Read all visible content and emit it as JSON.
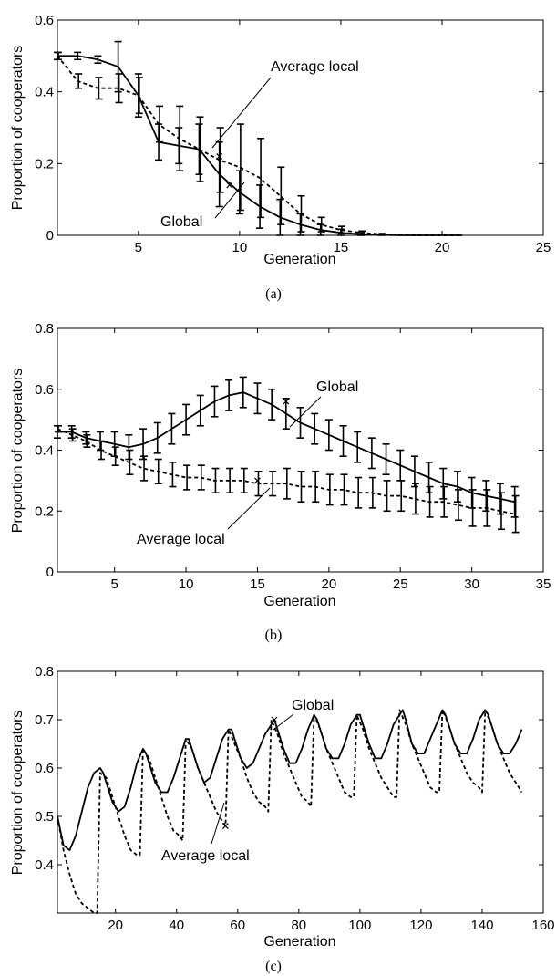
{
  "chart_data": [
    {
      "type": "line",
      "caption": "(a)",
      "xlabel": "Generation",
      "ylabel": "Proportion of cooperators",
      "xlim": [
        1,
        25
      ],
      "ylim": [
        0,
        0.6
      ],
      "xticks": [
        5,
        10,
        15,
        20,
        25
      ],
      "yticks": [
        0,
        0.2,
        0.4,
        0.6
      ],
      "grid": false,
      "series": [
        {
          "name": "Global",
          "style": "solid",
          "x": [
            1,
            2,
            3,
            4,
            5,
            6,
            7,
            8,
            9,
            10,
            11,
            12,
            13,
            14,
            15,
            16,
            17,
            18,
            19,
            20,
            21
          ],
          "y": [
            0.5,
            0.5,
            0.49,
            0.47,
            0.39,
            0.26,
            0.25,
            0.24,
            0.17,
            0.12,
            0.08,
            0.05,
            0.03,
            0.015,
            0.007,
            0.003,
            0.001,
            0,
            0,
            0,
            0
          ],
          "err": [
            0.01,
            0.01,
            0.01,
            0.07,
            0.06,
            0.05,
            0.05,
            0.07,
            0.09,
            0.06,
            0.06,
            0.05,
            0.03,
            0.015,
            0.01,
            0.005,
            0.002,
            0,
            0,
            0,
            0
          ]
        },
        {
          "name": "Average local",
          "style": "dashed",
          "x": [
            1,
            2,
            3,
            4,
            5,
            6,
            7,
            8,
            9,
            10,
            11,
            12,
            13,
            14,
            15,
            16,
            17,
            18,
            19,
            20,
            21
          ],
          "y": [
            0.5,
            0.43,
            0.41,
            0.41,
            0.39,
            0.31,
            0.27,
            0.24,
            0.21,
            0.19,
            0.16,
            0.11,
            0.06,
            0.03,
            0.015,
            0.007,
            0.003,
            0.001,
            0,
            0,
            0
          ],
          "err": [
            0.01,
            0.02,
            0.03,
            0.04,
            0.05,
            0.05,
            0.09,
            0.09,
            0.09,
            0.12,
            0.11,
            0.08,
            0.05,
            0.02,
            0.01,
            0.005,
            0.002,
            0,
            0,
            0,
            0
          ]
        }
      ],
      "annotations": [
        {
          "text": "Average local",
          "series": 1,
          "x": 9,
          "y": 0.22
        },
        {
          "text": "Global",
          "series": 0,
          "x": 9.5,
          "y": 0.14
        }
      ]
    },
    {
      "type": "line",
      "caption": "(b)",
      "xlabel": "Generation",
      "ylabel": "Proportion of cooperators",
      "xlim": [
        1,
        35
      ],
      "ylim": [
        0,
        0.8
      ],
      "xticks": [
        5,
        10,
        15,
        20,
        25,
        30,
        35
      ],
      "yticks": [
        0,
        0.2,
        0.4,
        0.6,
        0.8
      ],
      "grid": false,
      "series": [
        {
          "name": "Global",
          "style": "solid",
          "x": [
            1,
            2,
            3,
            4,
            5,
            6,
            7,
            8,
            9,
            10,
            11,
            12,
            13,
            14,
            15,
            16,
            17,
            18,
            19,
            20,
            21,
            22,
            23,
            24,
            25,
            26,
            27,
            28,
            29,
            30,
            31,
            32,
            33
          ],
          "y": [
            0.46,
            0.46,
            0.44,
            0.43,
            0.42,
            0.41,
            0.42,
            0.44,
            0.47,
            0.5,
            0.53,
            0.56,
            0.58,
            0.59,
            0.57,
            0.55,
            0.52,
            0.49,
            0.47,
            0.45,
            0.43,
            0.41,
            0.39,
            0.37,
            0.35,
            0.33,
            0.31,
            0.29,
            0.28,
            0.26,
            0.25,
            0.24,
            0.23
          ],
          "err": [
            0.02,
            0.02,
            0.02,
            0.03,
            0.04,
            0.04,
            0.05,
            0.05,
            0.05,
            0.05,
            0.05,
            0.05,
            0.05,
            0.05,
            0.05,
            0.05,
            0.05,
            0.05,
            0.05,
            0.05,
            0.05,
            0.05,
            0.05,
            0.05,
            0.05,
            0.05,
            0.05,
            0.05,
            0.05,
            0.05,
            0.05,
            0.05,
            0.05
          ]
        },
        {
          "name": "Average local",
          "style": "dashed",
          "x": [
            1,
            2,
            3,
            4,
            5,
            6,
            7,
            8,
            9,
            10,
            11,
            12,
            13,
            14,
            15,
            16,
            17,
            18,
            19,
            20,
            21,
            22,
            23,
            24,
            25,
            26,
            27,
            28,
            29,
            30,
            31,
            32,
            33
          ],
          "y": [
            0.47,
            0.45,
            0.43,
            0.4,
            0.38,
            0.36,
            0.34,
            0.33,
            0.32,
            0.31,
            0.31,
            0.3,
            0.3,
            0.3,
            0.29,
            0.29,
            0.29,
            0.28,
            0.28,
            0.27,
            0.27,
            0.26,
            0.26,
            0.25,
            0.25,
            0.24,
            0.23,
            0.23,
            0.22,
            0.21,
            0.21,
            0.2,
            0.19
          ],
          "err": [
            0.01,
            0.02,
            0.02,
            0.03,
            0.03,
            0.04,
            0.04,
            0.04,
            0.04,
            0.04,
            0.04,
            0.04,
            0.04,
            0.04,
            0.04,
            0.04,
            0.05,
            0.05,
            0.05,
            0.05,
            0.05,
            0.05,
            0.05,
            0.05,
            0.05,
            0.05,
            0.05,
            0.05,
            0.05,
            0.06,
            0.06,
            0.06,
            0.06
          ]
        }
      ],
      "annotations": [
        {
          "text": "Global",
          "series": 0,
          "x": 17,
          "y": 0.56
        },
        {
          "text": "Average local",
          "series": 1,
          "x": 15,
          "y": 0.3
        }
      ]
    },
    {
      "type": "line",
      "caption": "(c)",
      "xlabel": "Generation",
      "ylabel": "Proportion of cooperators",
      "xlim": [
        1,
        160
      ],
      "ylim": [
        0.3,
        0.8
      ],
      "xticks": [
        20,
        40,
        60,
        80,
        100,
        120,
        140,
        160
      ],
      "yticks": [
        0.4,
        0.5,
        0.6,
        0.7,
        0.8
      ],
      "grid": false,
      "series": [
        {
          "name": "Global",
          "style": "solid",
          "x": [
            1,
            3,
            5,
            7,
            9,
            11,
            13,
            15,
            16,
            17,
            19,
            21,
            23,
            25,
            27,
            29,
            30,
            31,
            33,
            35,
            37,
            39,
            41,
            43,
            44,
            45,
            47,
            49,
            51,
            53,
            55,
            57,
            58,
            59,
            61,
            63,
            65,
            67,
            69,
            71,
            72,
            73,
            75,
            77,
            79,
            81,
            83,
            85,
            86,
            87,
            89,
            91,
            93,
            95,
            97,
            99,
            100,
            101,
            103,
            105,
            107,
            109,
            111,
            113,
            114,
            115,
            117,
            119,
            121,
            123,
            125,
            127,
            128,
            129,
            131,
            133,
            135,
            137,
            139,
            141,
            142,
            143,
            145,
            147,
            149,
            151,
            153
          ],
          "y": [
            0.5,
            0.44,
            0.43,
            0.46,
            0.51,
            0.56,
            0.59,
            0.6,
            0.59,
            0.57,
            0.53,
            0.51,
            0.52,
            0.56,
            0.61,
            0.64,
            0.63,
            0.61,
            0.57,
            0.55,
            0.55,
            0.58,
            0.62,
            0.66,
            0.66,
            0.64,
            0.6,
            0.57,
            0.58,
            0.62,
            0.66,
            0.68,
            0.68,
            0.66,
            0.62,
            0.6,
            0.61,
            0.64,
            0.67,
            0.69,
            0.7,
            0.68,
            0.64,
            0.61,
            0.61,
            0.64,
            0.68,
            0.71,
            0.7,
            0.68,
            0.64,
            0.62,
            0.62,
            0.65,
            0.69,
            0.71,
            0.71,
            0.69,
            0.65,
            0.62,
            0.62,
            0.65,
            0.69,
            0.71,
            0.72,
            0.7,
            0.65,
            0.63,
            0.63,
            0.66,
            0.69,
            0.72,
            0.71,
            0.69,
            0.65,
            0.63,
            0.63,
            0.66,
            0.7,
            0.72,
            0.71,
            0.69,
            0.65,
            0.63,
            0.63,
            0.65,
            0.68
          ]
        },
        {
          "name": "Average local",
          "style": "dashed",
          "x": [
            1,
            3,
            5,
            7,
            9,
            11,
            13,
            14,
            15,
            17,
            19,
            21,
            23,
            25,
            27,
            28,
            29,
            31,
            33,
            35,
            37,
            39,
            41,
            42,
            43,
            45,
            47,
            49,
            51,
            53,
            55,
            56,
            57,
            59,
            61,
            63,
            65,
            67,
            69,
            70,
            71,
            73,
            75,
            77,
            79,
            81,
            83,
            84,
            85,
            87,
            89,
            91,
            93,
            95,
            97,
            98,
            99,
            101,
            103,
            105,
            107,
            109,
            111,
            112,
            113,
            115,
            117,
            119,
            121,
            123,
            125,
            126,
            127,
            129,
            131,
            133,
            135,
            137,
            139,
            140,
            141,
            143,
            145,
            147,
            149,
            151,
            153
          ],
          "y": [
            0.5,
            0.43,
            0.38,
            0.34,
            0.32,
            0.31,
            0.3,
            0.3,
            0.59,
            0.58,
            0.54,
            0.5,
            0.46,
            0.43,
            0.42,
            0.42,
            0.64,
            0.62,
            0.58,
            0.54,
            0.5,
            0.47,
            0.46,
            0.45,
            0.66,
            0.64,
            0.6,
            0.57,
            0.54,
            0.51,
            0.49,
            0.48,
            0.68,
            0.65,
            0.62,
            0.58,
            0.55,
            0.53,
            0.52,
            0.51,
            0.7,
            0.67,
            0.63,
            0.6,
            0.57,
            0.54,
            0.53,
            0.52,
            0.71,
            0.68,
            0.64,
            0.61,
            0.58,
            0.55,
            0.54,
            0.54,
            0.71,
            0.68,
            0.64,
            0.61,
            0.58,
            0.56,
            0.54,
            0.54,
            0.72,
            0.69,
            0.65,
            0.62,
            0.59,
            0.56,
            0.55,
            0.55,
            0.72,
            0.69,
            0.65,
            0.62,
            0.59,
            0.57,
            0.56,
            0.55,
            0.72,
            0.69,
            0.65,
            0.62,
            0.59,
            0.57,
            0.55
          ]
        }
      ],
      "annotations": [
        {
          "text": "Global",
          "series": 0,
          "x": 72,
          "y": 0.7
        },
        {
          "text": "Average local",
          "series": 1,
          "x": 56,
          "y": 0.48
        }
      ]
    }
  ]
}
